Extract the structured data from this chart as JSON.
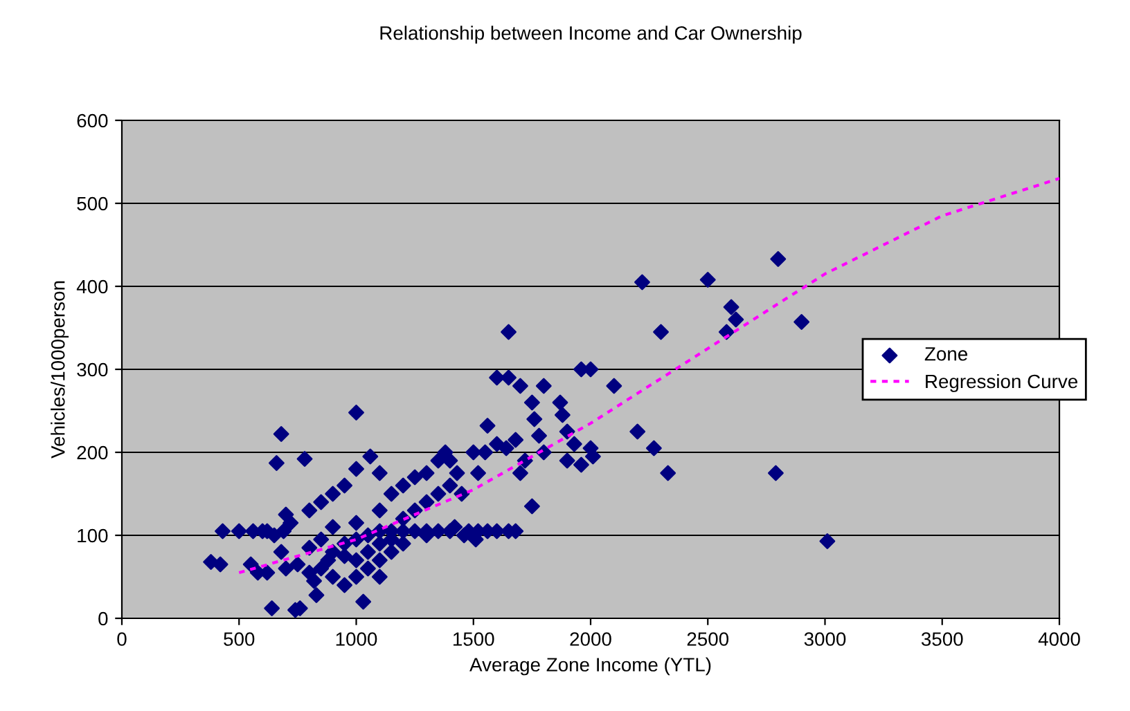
{
  "chart_data": {
    "type": "scatter",
    "title": "Relationship between Income and Car Ownership",
    "xlabel": "Average Zone Income (YTL)",
    "ylabel": "Vehicles/1000person",
    "xlim": [
      0,
      4000
    ],
    "xticks": [
      0,
      500,
      1000,
      1500,
      2000,
      2500,
      3000,
      3500,
      4000
    ],
    "ylim": [
      0,
      600
    ],
    "yticks": [
      0,
      100,
      200,
      300,
      400,
      500,
      600
    ],
    "grid": "y",
    "legend": "right",
    "series": [
      {
        "name": "Zone",
        "marker": "diamond",
        "color": "#000080",
        "x": [
          2220,
          2500,
          2800,
          2600,
          2620,
          2580,
          2300,
          2900,
          2790,
          3010,
          2330,
          2270,
          2200,
          2100,
          2000,
          1960,
          1650,
          1600,
          1650,
          1000,
          680,
          660,
          780,
          640,
          760,
          740,
          1030,
          830,
          380,
          420,
          430,
          1700,
          1870,
          1880,
          1800,
          1750,
          1780,
          1760,
          1720,
          1700,
          1500,
          1550,
          1520,
          1560,
          1600,
          1640,
          1680,
          1900,
          1930,
          1960,
          2000,
          2010,
          1900,
          1800,
          1750,
          1460,
          1420,
          1510,
          1680,
          1650,
          1600,
          1560,
          1520,
          1480,
          1400,
          1350,
          1300,
          1250,
          1200,
          1150,
          1100,
          500,
          560,
          600,
          620,
          690,
          550,
          580,
          620,
          700,
          680,
          650,
          700,
          720,
          800,
          850,
          900,
          950,
          1000,
          1060,
          1100,
          1150,
          1200,
          1250,
          1300,
          1350,
          1380,
          1400,
          1430,
          1100,
          1200,
          1250,
          1300,
          1350,
          1400,
          1450,
          1300,
          1200,
          1150,
          1100,
          1050,
          1000,
          950,
          900,
          850,
          800,
          750,
          900,
          950,
          1000,
          1050,
          850,
          800,
          900,
          1000,
          1100,
          950,
          1000,
          1050,
          880,
          820,
          1100,
          1150
        ],
        "values": [
          405,
          408,
          433,
          375,
          360,
          345,
          345,
          357,
          175,
          93,
          175,
          205,
          225,
          280,
          300,
          300,
          345,
          290,
          290,
          248,
          222,
          187,
          192,
          12,
          12,
          10,
          20,
          28,
          68,
          65,
          105,
          280,
          260,
          245,
          280,
          260,
          220,
          240,
          190,
          175,
          200,
          200,
          175,
          232,
          210,
          205,
          215,
          225,
          210,
          185,
          205,
          195,
          190,
          200,
          135,
          100,
          110,
          95,
          105,
          105,
          105,
          105,
          105,
          105,
          105,
          105,
          105,
          105,
          105,
          105,
          105,
          105,
          105,
          105,
          105,
          105,
          65,
          55,
          55,
          60,
          80,
          100,
          125,
          115,
          130,
          140,
          150,
          160,
          180,
          195,
          175,
          150,
          160,
          170,
          175,
          190,
          200,
          190,
          175,
          130,
          120,
          130,
          140,
          150,
          160,
          150,
          100,
          90,
          80,
          70,
          60,
          50,
          40,
          50,
          60,
          55,
          65,
          80,
          90,
          95,
          100,
          95,
          85,
          110,
          115,
          90,
          75,
          70,
          80,
          70,
          45,
          50,
          95
        ]
      },
      {
        "name": "Regression Curve",
        "type": "line",
        "line_style": "dotted",
        "marker": "none",
        "color": "#ff00ff",
        "x": [
          500,
          1000,
          1500,
          2000,
          2500,
          3000,
          3500,
          4000
        ],
        "values": [
          55,
          95,
          155,
          235,
          325,
          415,
          485,
          530
        ]
      }
    ]
  }
}
